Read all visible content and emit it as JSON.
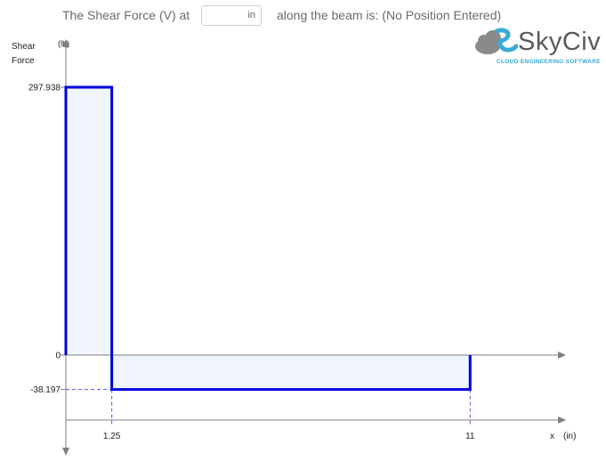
{
  "question": {
    "prefix": "The Shear Force (V) at",
    "suffix": "along the beam is: (No Position Entered)",
    "input_value": "",
    "input_unit": "in"
  },
  "logo": {
    "wordmark": "SkyCiv",
    "tagline": "CLOUD ENGINEERING SOFTWARE"
  },
  "colors": {
    "line": "#0000dd",
    "fill": "#f0f4fd",
    "axis": "#808080",
    "guide": "#4f5be8",
    "logo_accent": "#3aa9d8"
  },
  "chart_data": {
    "type": "area",
    "ylabel_line1": "Shear",
    "ylabel_line2": "Force",
    "yunit": "(lb)",
    "xlabel": "x",
    "xunit": "(in)",
    "x": [
      0,
      0,
      1.25,
      1.25,
      11,
      11
    ],
    "y": [
      0,
      297.938,
      297.938,
      -38.197,
      -38.197,
      0
    ],
    "y_ticks": [
      {
        "value": 297.938,
        "label": "297.938"
      },
      {
        "value": 0,
        "label": "0"
      },
      {
        "value": -38.197,
        "label": "-38.197"
      }
    ],
    "x_ticks": [
      {
        "value": 1.25,
        "label": "1.25"
      },
      {
        "value": 11,
        "label": "11"
      }
    ]
  }
}
